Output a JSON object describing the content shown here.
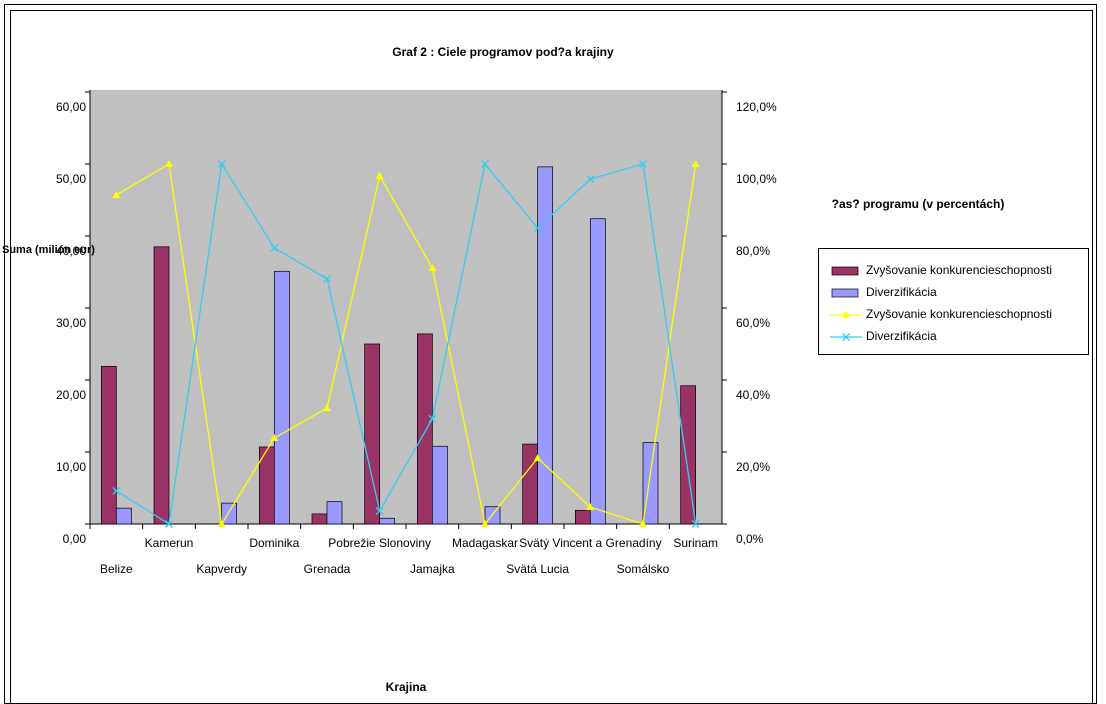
{
  "chart_data": {
    "type": "bar_line",
    "title": "Graf 2 : Ciele programov pod?a krajiny",
    "y_label": "Suma (milión eur)",
    "y2_label": "?as? programu (v percentách)",
    "x_label": "Krajina",
    "categories": [
      "Belize",
      "Kamerun",
      "Kapverdy",
      "Dominika",
      "Grenada",
      "Pobrežie Slonoviny",
      "Jamajka",
      "Madagaskar",
      "Svätá Lucia",
      "Svätý Vincent a Grenadíny",
      "Somálsko",
      "Surinam"
    ],
    "ylim": [
      0,
      60
    ],
    "yticks": [
      {
        "value": 0,
        "label": "0,00"
      },
      {
        "value": 10,
        "label": "10,00"
      },
      {
        "value": 20,
        "label": "20,00"
      },
      {
        "value": 30,
        "label": "30,00"
      },
      {
        "value": 40,
        "label": "40,00"
      },
      {
        "value": 50,
        "label": "50,00"
      },
      {
        "value": 60,
        "label": "60,00"
      }
    ],
    "y2lim": [
      0,
      120
    ],
    "y2ticks": [
      {
        "value": 0,
        "label": "0,0%"
      },
      {
        "value": 20,
        "label": "20,0%"
      },
      {
        "value": 40,
        "label": "40,0%"
      },
      {
        "value": 60,
        "label": "60,0%"
      },
      {
        "value": 80,
        "label": "80,0%"
      },
      {
        "value": 100,
        "label": "100,0%"
      },
      {
        "value": 120,
        "label": "120,0%"
      }
    ],
    "series": [
      {
        "name": "Zvyšovanie konkurencieschopnosti",
        "kind": "bar",
        "color": "#993366",
        "values": [
          21.9,
          38.5,
          0,
          10.7,
          1.4,
          25.0,
          26.4,
          0,
          11.1,
          1.9,
          0,
          19.2
        ]
      },
      {
        "name": "Diverzifikácia",
        "kind": "bar",
        "color": "#9999ff",
        "values": [
          2.2,
          0,
          2.9,
          35.1,
          3.1,
          0.8,
          10.8,
          2.4,
          49.6,
          42.4,
          11.3,
          0
        ]
      },
      {
        "name": "Zvyšovanie konkurencieschopnosti",
        "kind": "line",
        "axis": "y2",
        "color": "#ffff00",
        "values": [
          91.4,
          100,
          0,
          23.9,
          32.2,
          96.7,
          71.1,
          0,
          18.3,
          4.7,
          0,
          100
        ]
      },
      {
        "name": "Diverzifikácia",
        "kind": "line",
        "axis": "y2",
        "color": "#33ccee",
        "values": [
          9.2,
          0,
          100,
          76.7,
          68.1,
          3.6,
          29.2,
          100,
          82.2,
          95.8,
          100,
          0
        ]
      }
    ]
  }
}
